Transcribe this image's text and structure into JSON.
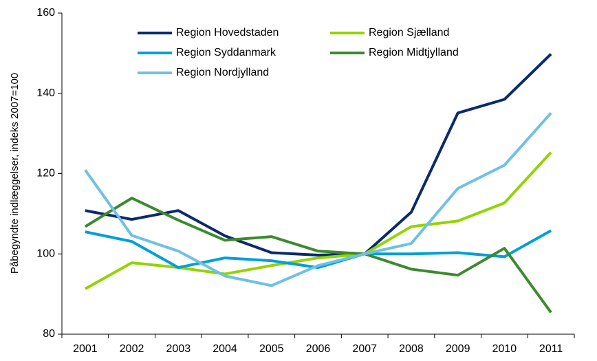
{
  "chart_data": {
    "type": "line",
    "y_label": "Påbegyndte indlæggelser, indeks 2007=100",
    "categories": [
      "2001",
      "2002",
      "2003",
      "2004",
      "2005",
      "2006",
      "2007",
      "2008",
      "2009",
      "2010",
      "2011"
    ],
    "series": [
      {
        "name": "Region Hovedstaden",
        "color": "#0a2a6e",
        "values": [
          110.8,
          108.6,
          110.8,
          104.5,
          100.3,
          99.7,
          100,
          110.4,
          135.1,
          138.5,
          149.8
        ]
      },
      {
        "name": "Region Sjælland",
        "color": "#92d400",
        "values": [
          91.3,
          97.8,
          96.6,
          95.0,
          97.1,
          99.0,
          100,
          106.8,
          108.2,
          112.7,
          125.3
        ]
      },
      {
        "name": "Region Syddanmark",
        "color": "#009fda",
        "values": [
          105.5,
          103.1,
          96.6,
          99.0,
          98.3,
          96.6,
          100,
          100,
          100.3,
          99.3,
          105.8
        ]
      },
      {
        "name": "Region Midtjylland",
        "color": "#3c8a2e",
        "values": [
          106.8,
          113.9,
          108.4,
          103.4,
          104.3,
          100.7,
          100,
          96.2,
          94.7,
          101.4,
          85.4
        ]
      },
      {
        "name": "Region Nordjylland",
        "color": "#6ec1e4",
        "values": [
          120.9,
          104.6,
          100.7,
          94.5,
          92.1,
          97.1,
          100,
          102.6,
          116.3,
          122.1,
          135.1
        ]
      }
    ],
    "ylim": [
      80,
      160
    ],
    "yticks": [
      80,
      100,
      120,
      140,
      160
    ],
    "legend": "top"
  }
}
